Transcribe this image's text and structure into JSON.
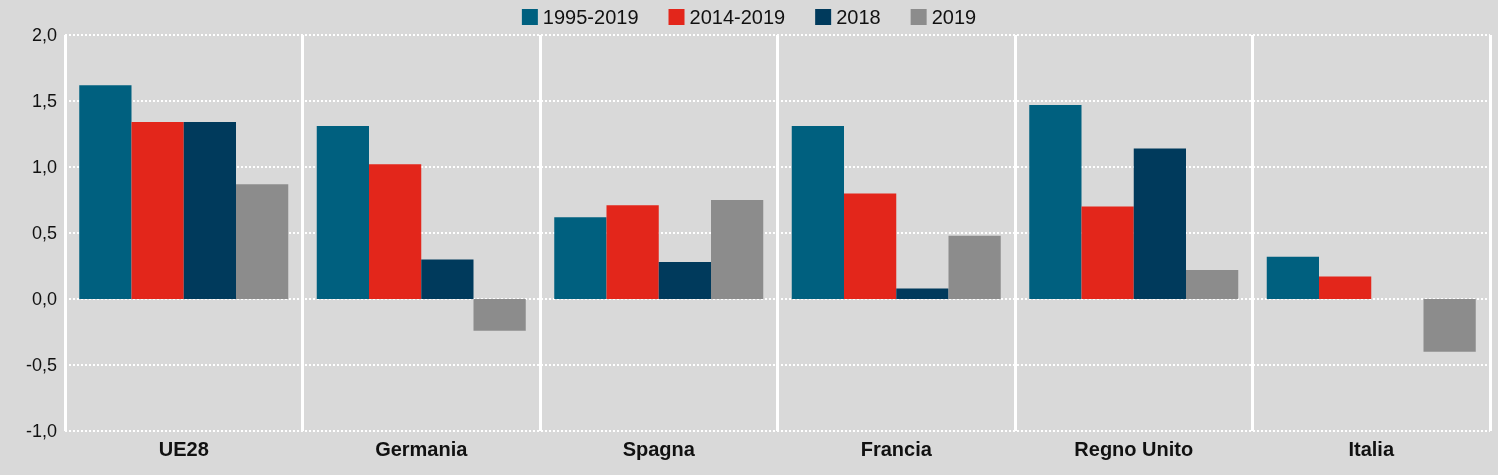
{
  "chart_data": {
    "type": "bar",
    "categories": [
      "UE28",
      "Germania",
      "Spagna",
      "Francia",
      "Regno Unito",
      "Italia"
    ],
    "series": [
      {
        "name": "1995-2019",
        "color": "#00607f",
        "values": [
          1.62,
          1.31,
          0.62,
          1.31,
          1.47,
          0.32
        ]
      },
      {
        "name": "2014-2019",
        "color": "#e3261b",
        "values": [
          1.34,
          1.02,
          0.71,
          0.8,
          0.7,
          0.17
        ]
      },
      {
        "name": "2018",
        "color": "#003a5c",
        "values": [
          1.34,
          0.3,
          0.28,
          0.08,
          1.14,
          null
        ]
      },
      {
        "name": "2019",
        "color": "#8c8c8c",
        "values": [
          0.87,
          -0.24,
          0.75,
          0.48,
          0.22,
          -0.4
        ]
      }
    ],
    "ylim": [
      -1,
      2
    ],
    "yticks": [
      {
        "value": -1,
        "label": "-1,0"
      },
      {
        "value": -0.5,
        "label": "-0,5"
      },
      {
        "value": 0,
        "label": "0,0"
      },
      {
        "value": 0.5,
        "label": "0,5"
      },
      {
        "value": 1,
        "label": "1,0"
      },
      {
        "value": 1.5,
        "label": "1,5"
      },
      {
        "value": 2,
        "label": "2,0"
      }
    ],
    "grid": true,
    "legend": "top"
  }
}
